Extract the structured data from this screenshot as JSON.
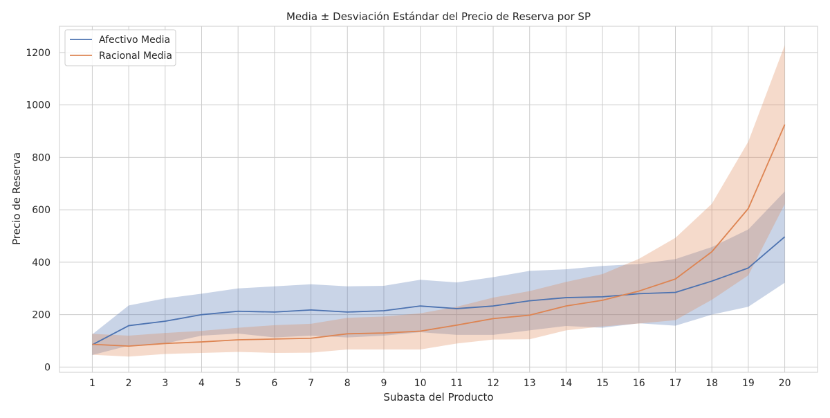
{
  "chart_data": {
    "type": "line",
    "title": "Media ± Desviación Estándar del Precio de Reserva por SP",
    "xlabel": "Subasta del Producto",
    "ylabel": "Precio de Reserva",
    "x": [
      1,
      2,
      3,
      4,
      5,
      6,
      7,
      8,
      9,
      10,
      11,
      12,
      13,
      14,
      15,
      16,
      17,
      18,
      19,
      20
    ],
    "xlim": [
      0.1,
      20.9
    ],
    "ylim": [
      -20,
      1300
    ],
    "yticks": [
      0,
      200,
      400,
      600,
      800,
      1000,
      1200
    ],
    "grid": true,
    "legend_position": "top-left",
    "series": [
      {
        "name": "Afectivo Media",
        "color": "#4c72b0",
        "values": [
          85,
          158,
          175,
          200,
          213,
          210,
          218,
          210,
          215,
          233,
          223,
          233,
          253,
          265,
          268,
          280,
          285,
          328,
          378,
          497
        ],
        "upper": [
          125,
          235,
          262,
          280,
          300,
          308,
          316,
          308,
          310,
          333,
          323,
          343,
          367,
          373,
          386,
          393,
          412,
          458,
          525,
          670
        ],
        "lower": [
          46,
          82,
          90,
          120,
          128,
          113,
          120,
          113,
          120,
          133,
          123,
          123,
          140,
          157,
          150,
          167,
          158,
          200,
          230,
          322
        ]
      },
      {
        "name": "Racional Media",
        "color": "#dd8452",
        "values": [
          87,
          80,
          90,
          96,
          104,
          107,
          110,
          127,
          130,
          137,
          160,
          185,
          198,
          233,
          255,
          290,
          336,
          440,
          605,
          925
        ],
        "upper": [
          127,
          120,
          130,
          138,
          150,
          160,
          165,
          188,
          193,
          205,
          230,
          265,
          290,
          325,
          355,
          413,
          493,
          623,
          860,
          1228
        ],
        "lower": [
          47,
          40,
          50,
          54,
          58,
          54,
          55,
          67,
          67,
          67,
          90,
          105,
          106,
          140,
          155,
          166,
          179,
          257,
          350,
          622
        ]
      }
    ]
  }
}
